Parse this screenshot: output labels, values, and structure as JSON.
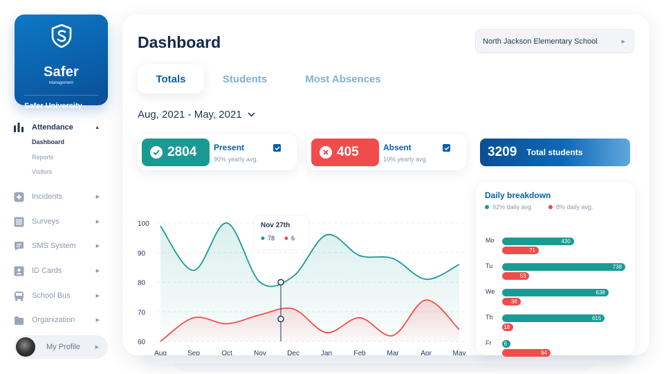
{
  "brand": {
    "name": "Safer",
    "subtitle": "Management",
    "university": "Safer University"
  },
  "nav": {
    "items": [
      {
        "label": "Attendance",
        "icon": "bar-chart-icon"
      },
      {
        "label": "Incidents",
        "icon": "plus-square-icon"
      },
      {
        "label": "Surveys",
        "icon": "list-icon"
      },
      {
        "label": "SMS System",
        "icon": "chat-icon"
      },
      {
        "label": "ID Cards",
        "icon": "id-card-icon"
      },
      {
        "label": "School Bus",
        "icon": "bus-icon"
      },
      {
        "label": "Organization",
        "icon": "folder-icon"
      }
    ],
    "sub_items": [
      "Dashboard",
      "Reports",
      "Visitors"
    ]
  },
  "profile": {
    "label": "My Profile"
  },
  "header": {
    "title": "Dashboard",
    "school": "North Jackson Elementary School"
  },
  "tabs": [
    "Totals",
    "Students",
    "Most Absences"
  ],
  "date_range": "Aug, 2021 - May, 2021",
  "stats": {
    "present": {
      "value": "2804",
      "label": "Present",
      "sub": "90% yearly avg."
    },
    "absent": {
      "value": "405",
      "label": "Absent",
      "sub": "10% yearly avg."
    },
    "total": {
      "value": "3209",
      "label": "Total students"
    }
  },
  "colors": {
    "present": "#1a9a93",
    "absent": "#f24b4b",
    "accent": "#0b5faa"
  },
  "chart_data": {
    "type": "area",
    "x": [
      "Aug",
      "Sep",
      "Oct",
      "Nov",
      "Dec",
      "Jan",
      "Feb",
      "Mar",
      "Apr",
      "May"
    ],
    "ylim": [
      60,
      100
    ],
    "y_ticks": [
      100,
      90,
      80,
      70,
      60
    ],
    "series": [
      {
        "name": "",
        "color": "#1a9a93",
        "values": [
          99,
          84,
          100,
          80,
          82,
          96,
          89,
          88,
          81,
          86
        ]
      },
      {
        "name": "",
        "color": "#f24b4b",
        "values": [
          60,
          68,
          66,
          69,
          71,
          63,
          68,
          62,
          74,
          64
        ]
      }
    ],
    "tooltip": {
      "label": "Nov 27th",
      "present": "78",
      "absent": "6"
    }
  },
  "breakdown": {
    "title": "Daily breakdown",
    "legend_present": "92% daily avg.",
    "legend_absent": "8% daily avg.",
    "max": 738,
    "days": [
      {
        "day": "Mo",
        "present": 430,
        "absent": 71
      },
      {
        "day": "Tu",
        "present": 738,
        "absent": 53
      },
      {
        "day": "We",
        "present": 638,
        "absent": 36
      },
      {
        "day": "Th",
        "present": 615,
        "absent": 18
      },
      {
        "day": "Fr",
        "present": 6,
        "absent": 94
      }
    ]
  }
}
